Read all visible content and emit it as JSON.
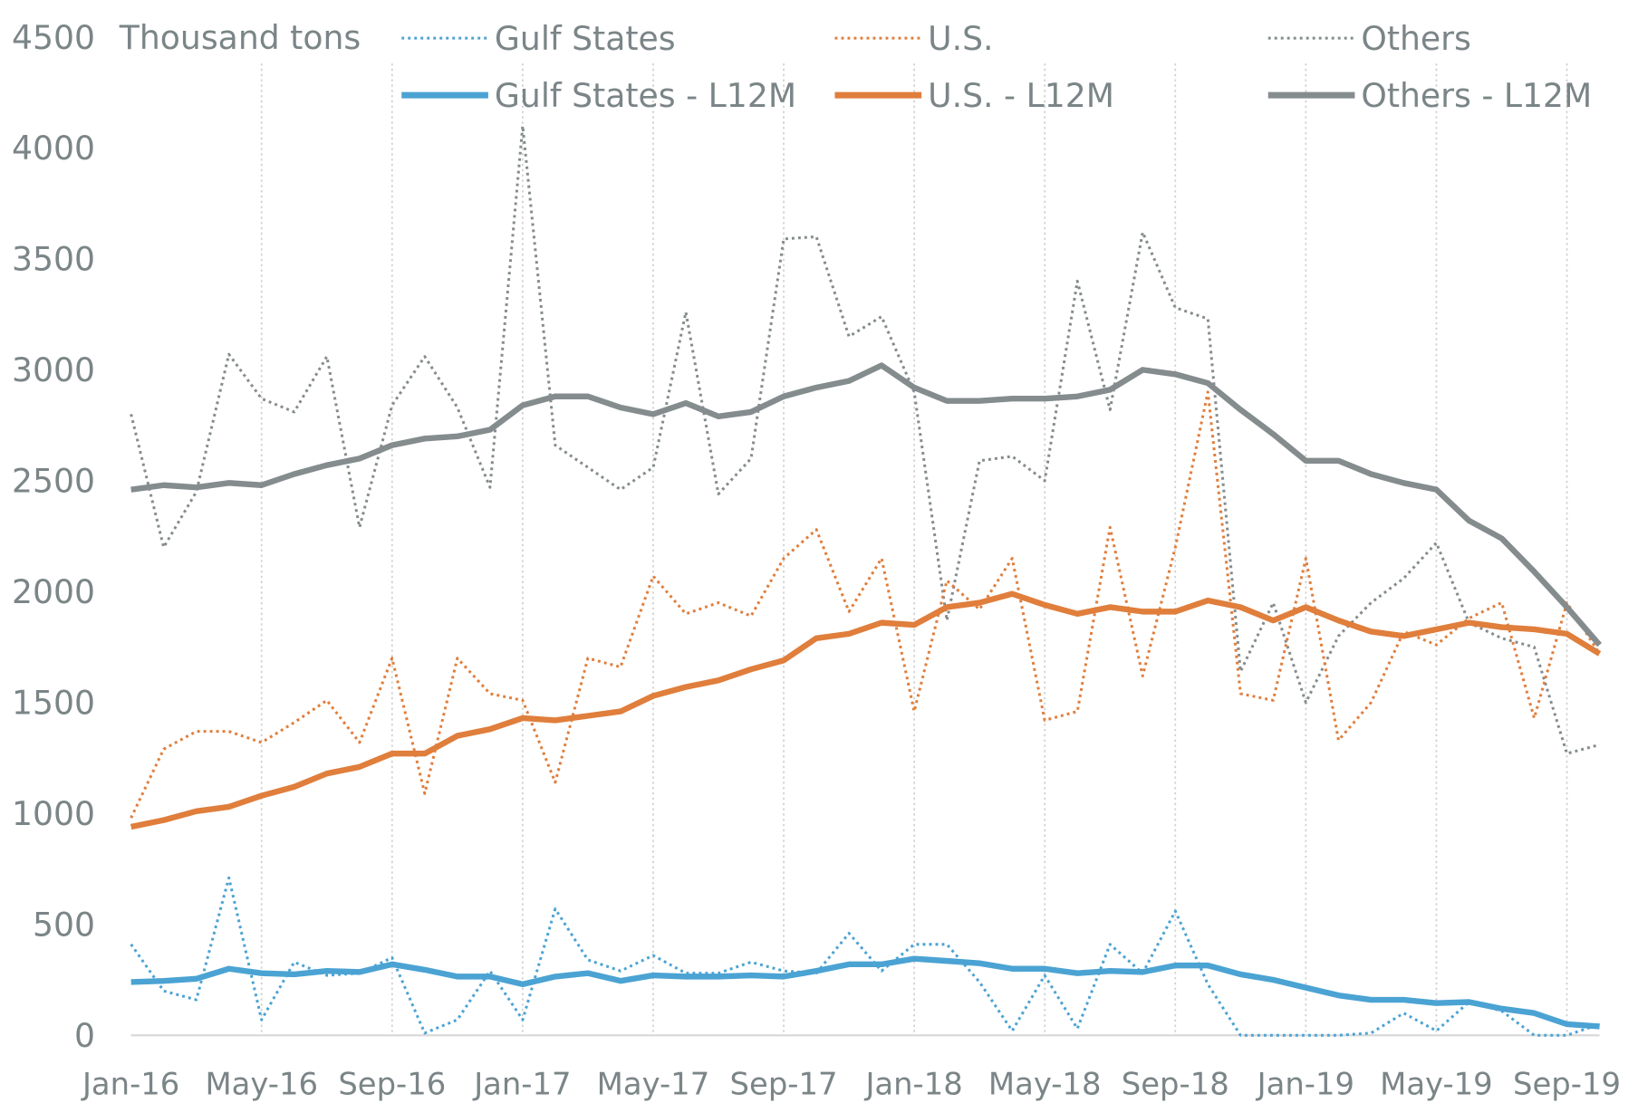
{
  "chart_data": {
    "type": "line",
    "ylabel": "Thousand tons",
    "ylim": [
      0,
      4500
    ],
    "yticks": [
      0,
      500,
      1000,
      1500,
      2000,
      2500,
      3000,
      3500,
      4000,
      4500
    ],
    "xtick_labels": [
      "Jan-16",
      "May-16",
      "Sep-16",
      "Jan-17",
      "May-17",
      "Sep-17",
      "Jan-18",
      "May-18",
      "Sep-18",
      "Jan-19",
      "May-19",
      "Sep-19"
    ],
    "x_start": "Jan-16",
    "x_end": "Oct-19",
    "grid": "vertical dotted",
    "legend": "top",
    "series": [
      {
        "name": "Gulf States",
        "style": "dotted",
        "color": "#4ba3d3",
        "values": [
          410,
          200,
          160,
          710,
          70,
          330,
          270,
          280,
          350,
          10,
          70,
          290,
          70,
          570,
          340,
          290,
          360,
          280,
          280,
          330,
          290,
          280,
          460,
          290,
          410,
          410,
          240,
          20,
          270,
          30,
          410,
          280,
          560,
          230,
          0,
          0,
          0,
          0,
          10,
          100,
          20,
          150,
          110,
          0,
          0,
          50
        ]
      },
      {
        "name": "U.S.",
        "style": "dotted",
        "color": "#e07e3c",
        "values": [
          980,
          1290,
          1370,
          1370,
          1320,
          1410,
          1510,
          1320,
          1700,
          1090,
          1700,
          1540,
          1510,
          1140,
          1700,
          1660,
          2070,
          1900,
          1950,
          1890,
          2150,
          2280,
          1910,
          2150,
          1460,
          2050,
          1920,
          2150,
          1420,
          1460,
          2290,
          1620,
          2200,
          2900,
          1540,
          1510,
          2150,
          1330,
          1500,
          1820,
          1760,
          1880,
          1950,
          1430,
          1950,
          1720
        ]
      },
      {
        "name": "Others",
        "style": "dotted",
        "color": "#858c8e",
        "values": [
          2800,
          2200,
          2450,
          3070,
          2870,
          2810,
          3060,
          2290,
          2840,
          3060,
          2830,
          2470,
          4100,
          2660,
          2560,
          2460,
          2560,
          3260,
          2440,
          2600,
          3590,
          3600,
          3150,
          3240,
          2900,
          1870,
          2590,
          2610,
          2500,
          3400,
          2820,
          3620,
          3280,
          3230,
          1640,
          1950,
          1500,
          1800,
          1950,
          2060,
          2220,
          1860,
          1790,
          1750,
          1270,
          1310
        ]
      },
      {
        "name": "Gulf States - L12M",
        "style": "solid",
        "color": "#4ba3d3",
        "values": [
          240,
          245,
          255,
          300,
          280,
          275,
          290,
          285,
          320,
          295,
          265,
          265,
          230,
          265,
          280,
          245,
          270,
          265,
          265,
          270,
          265,
          290,
          320,
          320,
          345,
          335,
          325,
          300,
          300,
          280,
          290,
          285,
          315,
          315,
          275,
          250,
          215,
          180,
          160,
          160,
          145,
          150,
          120,
          100,
          50,
          40
        ]
      },
      {
        "name": "U.S. - L12M",
        "style": "solid",
        "color": "#e07e3c",
        "values": [
          940,
          970,
          1010,
          1030,
          1080,
          1120,
          1180,
          1210,
          1270,
          1270,
          1350,
          1380,
          1430,
          1420,
          1440,
          1460,
          1530,
          1570,
          1600,
          1650,
          1690,
          1790,
          1810,
          1860,
          1850,
          1930,
          1950,
          1990,
          1940,
          1900,
          1930,
          1910,
          1910,
          1960,
          1930,
          1870,
          1930,
          1870,
          1820,
          1800,
          1830,
          1860,
          1840,
          1830,
          1810,
          1720
        ]
      },
      {
        "name": "Others - L12M",
        "style": "solid",
        "color": "#858c8e",
        "values": [
          2460,
          2480,
          2470,
          2490,
          2480,
          2530,
          2570,
          2600,
          2660,
          2690,
          2700,
          2730,
          2840,
          2880,
          2880,
          2830,
          2800,
          2850,
          2790,
          2810,
          2880,
          2920,
          2950,
          3020,
          2920,
          2860,
          2860,
          2870,
          2870,
          2880,
          2910,
          3000,
          2980,
          2940,
          2820,
          2710,
          2590,
          2590,
          2530,
          2490,
          2460,
          2320,
          2240,
          2090,
          1930,
          1760
        ]
      }
    ]
  }
}
